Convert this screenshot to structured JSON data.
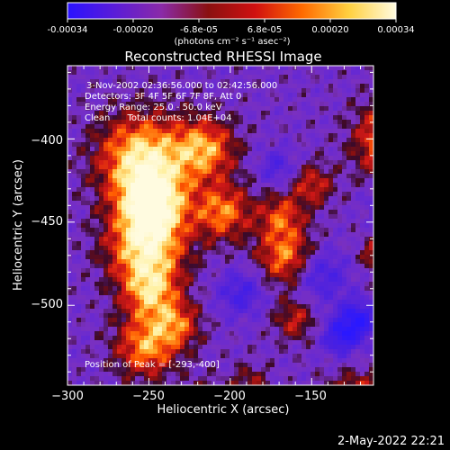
{
  "colorbar": {
    "tick_labels": [
      "-0.00034",
      "-0.00020",
      "-6.8e-05",
      "6.8e-05",
      "0.00020",
      "0.00034"
    ],
    "units_text": "(photons cm⁻² s⁻¹ asec⁻²)",
    "range": [
      -0.00034,
      0.00034
    ],
    "gradient_stops": [
      "#2a12ff",
      "#5a1cd8",
      "#8a2aa8",
      "#8a1010",
      "#d01010",
      "#ff6a00",
      "#ffd040",
      "#fffbe0"
    ]
  },
  "chart_data": {
    "type": "heatmap",
    "title": "Reconstructed RHESSI Image",
    "xlabel": "Heliocentric X (arcsec)",
    "ylabel": "Heliocentric Y (arcsec)",
    "xlim": [
      -300,
      -112
    ],
    "ylim": [
      -548,
      -356
    ],
    "x_ticks": [
      -300,
      -250,
      -200,
      -150
    ],
    "y_ticks": [
      -400,
      -450,
      -500
    ],
    "x_tick_labels": [
      "−300",
      "−250",
      "−200",
      "−150"
    ],
    "y_tick_labels": [
      "−400",
      "−450",
      "−500"
    ],
    "annotations": [
      "3-Nov-2002 02:36:56.000 to 02:42:56.000",
      "Detectors: 3F 4F 5F 6F 7F 8F, Att 0",
      "Energy Range: 25.0 - 50.0 keV",
      "Clean      Total counts: 1.04E+04"
    ],
    "peak_label": "Position of Peak = [-293,-400]",
    "peak_position": [
      -293,
      -400
    ]
  },
  "footer": {
    "timestamp": "2-May-2022 22:21"
  }
}
